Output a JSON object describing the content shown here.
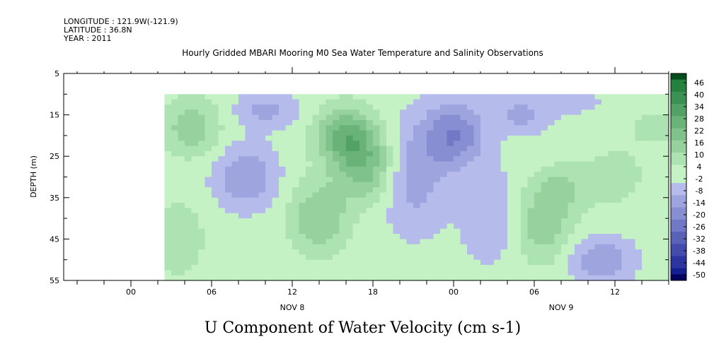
{
  "header": {
    "longitude": "LONGITUDE : 121.9W(-121.9)",
    "latitude": "LATITUDE : 36.8N",
    "year": "YEAR : 2011"
  },
  "chart_data": {
    "type": "heatmap",
    "title": "Hourly Gridded MBARI Mooring M0 Sea Water Temperature and Salinity Observations",
    "caption": "U Component of Water Velocity (cm s-1)",
    "ylabel": "DEPTH (m)",
    "ylim": [
      5,
      55
    ],
    "y_inverted": true,
    "y_ticks": [
      5,
      15,
      25,
      35,
      45,
      55
    ],
    "x_tick_labels": [
      "00",
      "06",
      "12",
      "18",
      "00",
      "06",
      "12"
    ],
    "x_tick_hours": [
      0,
      6,
      12,
      18,
      24,
      30,
      36
    ],
    "xlim_hours": [
      -5,
      40
    ],
    "data_start_hour": 2.5,
    "day_labels": [
      {
        "label": "NOV  8",
        "hour": 12
      },
      {
        "label": "NOV  9",
        "hour": 32
      }
    ],
    "depth_range": [
      10,
      55
    ],
    "colorbar": {
      "levels": [
        -50,
        -44,
        -38,
        -32,
        -26,
        -20,
        -14,
        -8,
        -2,
        4,
        10,
        16,
        22,
        28,
        34,
        40,
        46
      ],
      "labels": [
        "46",
        "40",
        "34",
        "28",
        "22",
        "16",
        "10",
        "4",
        "-2",
        "-8",
        "-14",
        "-20",
        "-26",
        "-32",
        "-38",
        "-44",
        "-50"
      ],
      "negative_color": "#2a38c8",
      "positive_color": "#1ccf4a",
      "extreme_low": "#04045e",
      "extreme_high": "#064d1c"
    },
    "features": [
      {
        "hour": 4.5,
        "depth_center": 18,
        "depth_width": 14,
        "value": 14
      },
      {
        "hour": 3.5,
        "depth_center": 45,
        "depth_width": 20,
        "value": 8
      },
      {
        "hour": 8.5,
        "depth_center": 30,
        "depth_width": 14,
        "value": -14
      },
      {
        "hour": 10,
        "depth_center": 14,
        "depth_width": 8,
        "value": -10
      },
      {
        "hour": 14,
        "depth_center": 40,
        "depth_width": 18,
        "value": 16
      },
      {
        "hour": 16,
        "depth_center": 20,
        "depth_width": 14,
        "value": 24
      },
      {
        "hour": 17.5,
        "depth_center": 28,
        "depth_width": 16,
        "value": 18
      },
      {
        "hour": 21,
        "depth_center": 30,
        "depth_width": 24,
        "value": -12
      },
      {
        "hour": 24,
        "depth_center": 20,
        "depth_width": 16,
        "value": -20
      },
      {
        "hour": 27,
        "depth_center": 40,
        "depth_width": 20,
        "value": -8
      },
      {
        "hour": 30.5,
        "depth_center": 42,
        "depth_width": 18,
        "value": 14
      },
      {
        "hour": 29,
        "depth_center": 15,
        "depth_width": 8,
        "value": -10
      },
      {
        "hour": 32,
        "depth_center": 33,
        "depth_width": 12,
        "value": 10
      },
      {
        "hour": 35,
        "depth_center": 50,
        "depth_width": 10,
        "value": -14
      },
      {
        "hour": 36,
        "depth_center": 30,
        "depth_width": 14,
        "value": 8
      },
      {
        "hour": 33,
        "depth_center": 12,
        "depth_width": 6,
        "value": -4
      },
      {
        "hour": 39,
        "depth_center": 18,
        "depth_width": 10,
        "value": 6
      }
    ]
  }
}
